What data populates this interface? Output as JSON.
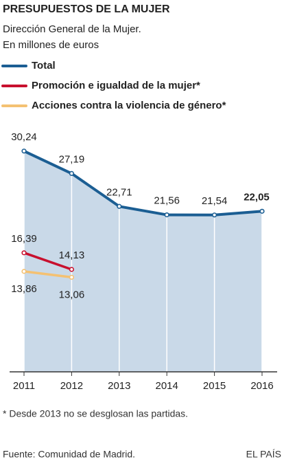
{
  "chart_data": {
    "type": "line",
    "title": "PRESUPUESTOS DE LA MUJER",
    "subtitle": [
      "Dirección General de la Mujer.",
      "En millones de euros"
    ],
    "categories": [
      "2011",
      "2012",
      "2013",
      "2014",
      "2015",
      "2016"
    ],
    "series": [
      {
        "name": "Total",
        "color": "#1b5e93",
        "area_color": "#c9d9e8",
        "values": [
          30.24,
          27.19,
          22.71,
          21.56,
          21.54,
          22.05
        ],
        "value_labels": [
          "30,24",
          "27,19",
          "22,71",
          "21,56",
          "21,54",
          "22,05"
        ]
      },
      {
        "name": "Promoción e igualdad de la mujer*",
        "color": "#c8102e",
        "values": [
          16.39,
          14.13,
          null,
          null,
          null,
          null
        ],
        "value_labels": [
          "16,39",
          "14,13",
          null,
          null,
          null,
          null
        ]
      },
      {
        "name": "Acciones contra la violencia de género*",
        "color": "#f4c172",
        "values": [
          13.86,
          13.06,
          null,
          null,
          null,
          null
        ],
        "value_labels": [
          "13,86",
          "13,06",
          null,
          null,
          null,
          null
        ]
      }
    ],
    "ylim": [
      0,
      32
    ],
    "footnote": "* Desde 2013 no se desglosan las partidas.",
    "source": "Fuente: Comunidad de Madrid.",
    "credit": "EL PAÍS"
  }
}
